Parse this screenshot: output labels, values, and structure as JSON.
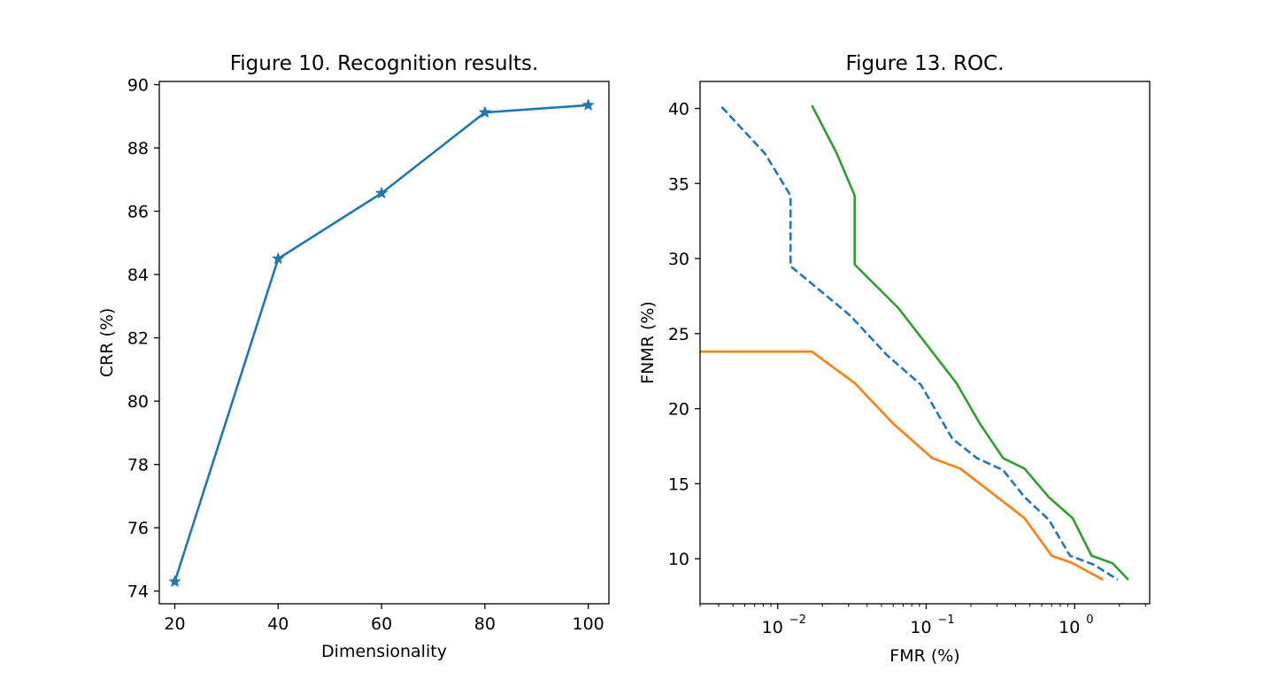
{
  "chart_data": [
    {
      "type": "line",
      "title": "Figure 10. Recognition results.",
      "xlabel": "Dimensionality",
      "ylabel": "CRR (%)",
      "xlim": [
        17,
        104
      ],
      "ylim": [
        73.6,
        90.1
      ],
      "xticks": [
        20,
        40,
        60,
        80,
        100
      ],
      "yticks": [
        74,
        76,
        78,
        80,
        82,
        84,
        86,
        88,
        90
      ],
      "grid": false,
      "series": [
        {
          "x": [
            20,
            40,
            60,
            80,
            100
          ],
          "values": [
            74.3,
            84.5,
            86.57,
            89.12,
            89.35
          ],
          "color": "#1f77b4",
          "marker": "star",
          "linestyle": "solid"
        }
      ]
    },
    {
      "type": "line",
      "title": "Figure 13. ROC.",
      "xlabel": "FMR (%)",
      "ylabel": "FNMR (%)",
      "xscale": "log",
      "xlim": [
        0.003,
        3.2
      ],
      "ylim": [
        7.0,
        41.8
      ],
      "xticks": [
        {
          "value": 0.01,
          "base": "10",
          "exp": "−2"
        },
        {
          "value": 0.1,
          "base": "10",
          "exp": "−1"
        },
        {
          "value": 1,
          "base": "10",
          "exp": "0"
        }
      ],
      "yticks": [
        10,
        15,
        20,
        25,
        30,
        35,
        40
      ],
      "grid": false,
      "series": [
        {
          "color": "#1f77b4",
          "linestyle": "dashed",
          "x": [
            0.0042,
            0.0082,
            0.0122,
            0.0122,
            0.0308,
            0.054,
            0.092,
            0.15,
            0.22,
            0.33,
            0.46,
            0.67,
            0.93,
            1.35,
            1.95
          ],
          "values": [
            40.1,
            37.0,
            34.2,
            29.5,
            26.2,
            23.6,
            21.6,
            18.0,
            16.7,
            15.9,
            14.1,
            12.6,
            10.2,
            9.6,
            8.6
          ]
        },
        {
          "color": "#ff7f0e",
          "linestyle": "solid",
          "x": [
            0.003,
            0.017,
            0.033,
            0.06,
            0.11,
            0.17,
            0.33,
            0.46,
            0.7,
            0.97,
            1.55
          ],
          "values": [
            23.8,
            23.8,
            21.7,
            19.0,
            16.7,
            16.0,
            13.8,
            12.7,
            10.2,
            9.7,
            8.6
          ]
        },
        {
          "color": "#2ca02c",
          "linestyle": "solid",
          "x": [
            0.017,
            0.025,
            0.033,
            0.033,
            0.065,
            0.16,
            0.23,
            0.33,
            0.46,
            0.67,
            0.97,
            1.3,
            1.8,
            2.3
          ],
          "values": [
            40.2,
            37.0,
            34.2,
            29.6,
            26.7,
            21.7,
            19.0,
            16.7,
            16.0,
            14.1,
            12.7,
            10.2,
            9.7,
            8.6
          ]
        }
      ]
    }
  ]
}
